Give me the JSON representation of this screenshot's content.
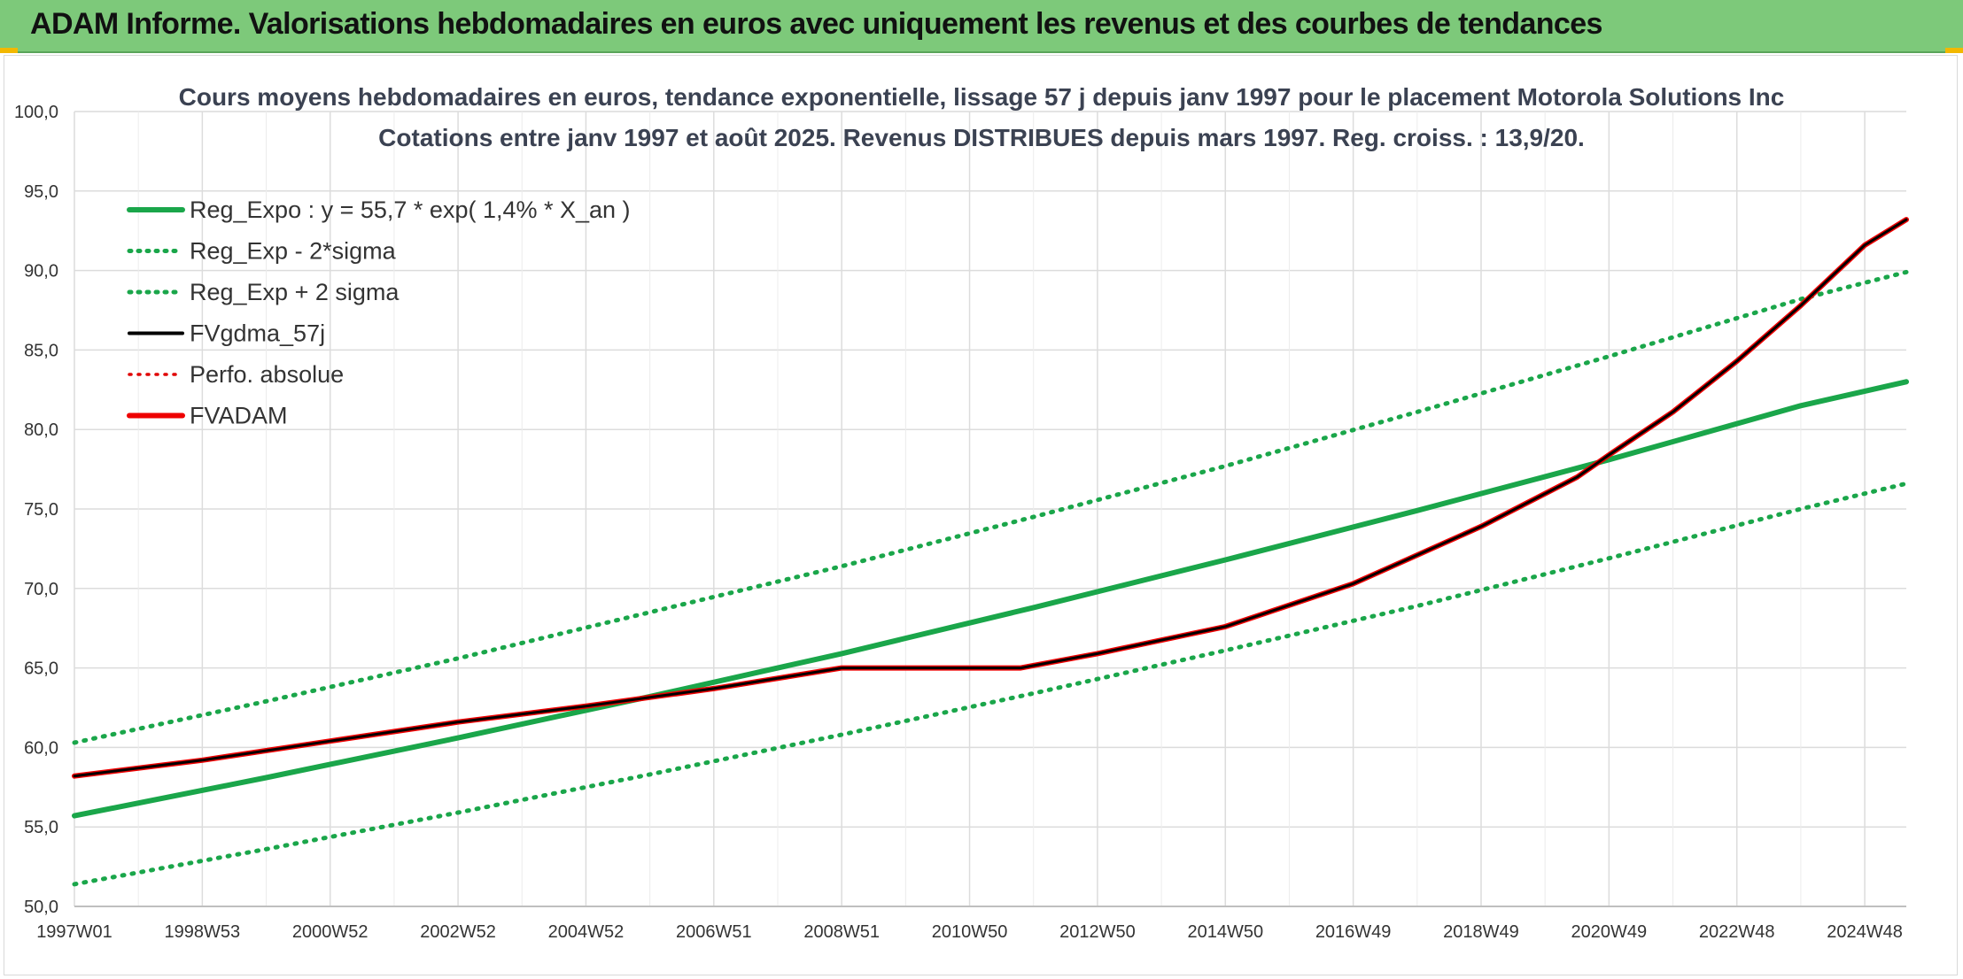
{
  "header": {
    "title": "ADAM Informe. Valorisations hebdomadaires en euros avec uniquement les revenus et des courbes de tendances"
  },
  "chart_data": {
    "type": "line",
    "title": "Cours moyens hebdomadaires en euros, tendance exponentielle, lissage 57 j depuis janv 1997 pour le placement Motorola Solutions Inc",
    "subtitle": "Cotations entre janv 1997 et août 2025. Revenus DISTRIBUES depuis mars 1997. Reg. croiss. : 13,9/20.",
    "xlabel": "",
    "ylabel": "",
    "ylim": [
      50,
      100
    ],
    "yticks": [
      "100,0",
      "95,0",
      "90,0",
      "85,0",
      "80,0",
      "75,0",
      "70,0",
      "65,0",
      "60,0",
      "55,0",
      "50,0"
    ],
    "xlim": [
      1997.0,
      2025.65
    ],
    "xticks": [
      {
        "label": "1997W01",
        "x": 1997.0
      },
      {
        "label": "1998W53",
        "x": 1999.0
      },
      {
        "label": "2000W52",
        "x": 2001.0
      },
      {
        "label": "2002W52",
        "x": 2003.0
      },
      {
        "label": "2004W52",
        "x": 2005.0
      },
      {
        "label": "2006W51",
        "x": 2007.0
      },
      {
        "label": "2008W51",
        "x": 2009.0
      },
      {
        "label": "2010W50",
        "x": 2011.0
      },
      {
        "label": "2012W50",
        "x": 2013.0
      },
      {
        "label": "2014W50",
        "x": 2015.0
      },
      {
        "label": "2016W49",
        "x": 2017.0
      },
      {
        "label": "2018W49",
        "x": 2019.0
      },
      {
        "label": "2020W49",
        "x": 2021.0
      },
      {
        "label": "2022W48",
        "x": 2023.0
      },
      {
        "label": "2024W48",
        "x": 2025.0
      }
    ],
    "grid": true,
    "legend_position": "top-left",
    "series": [
      {
        "name": "Reg_Expo : y = 55,7 * exp( 1,4% *  X_an )",
        "color": "#1aa64a",
        "style": "solid",
        "width": 6,
        "x": [
          1997,
          2000,
          2003,
          2006,
          2009,
          2012,
          2015,
          2018,
          2021,
          2024,
          2025.65
        ],
        "y": [
          55.7,
          58.1,
          60.6,
          63.2,
          65.9,
          68.8,
          71.8,
          74.9,
          78.1,
          81.5,
          83.0
        ]
      },
      {
        "name": "Reg_Exp - 2*sigma",
        "color": "#1aa64a",
        "style": "dotted",
        "width": 5,
        "x": [
          1997,
          2000,
          2003,
          2006,
          2009,
          2012,
          2015,
          2018,
          2021,
          2024,
          2025.65
        ],
        "y": [
          51.4,
          53.6,
          55.9,
          58.3,
          60.8,
          63.4,
          66.1,
          68.9,
          71.9,
          75.0,
          76.6
        ]
      },
      {
        "name": "Reg_Exp + 2 sigma",
        "color": "#1aa64a",
        "style": "dotted",
        "width": 5,
        "x": [
          1997,
          2000,
          2003,
          2006,
          2009,
          2012,
          2015,
          2018,
          2021,
          2024,
          2025.65
        ],
        "y": [
          60.3,
          62.9,
          65.6,
          68.5,
          71.4,
          74.5,
          77.7,
          81.1,
          84.6,
          88.2,
          89.9
        ]
      },
      {
        "name": "FVgdma_57j",
        "color": "#000000",
        "style": "solid",
        "width": 3,
        "x": [
          1997,
          1999,
          2001,
          2003,
          2005,
          2007,
          2009,
          2011,
          2011.8,
          2013,
          2015,
          2017,
          2019,
          2020.5,
          2021,
          2022,
          2023,
          2024,
          2025,
          2025.65
        ],
        "y": [
          58.2,
          59.2,
          60.4,
          61.6,
          62.6,
          63.7,
          65.0,
          65.0,
          65.0,
          65.9,
          67.6,
          70.3,
          73.9,
          77.0,
          78.4,
          81.1,
          84.3,
          87.8,
          91.6,
          93.2
        ]
      },
      {
        "name": "Perfo. absolue",
        "color": "#e00000",
        "style": "dotted",
        "width": 3,
        "x": [],
        "y": []
      },
      {
        "name": "FVADAM",
        "color": "#ee0000",
        "style": "solid",
        "width": 6,
        "x": [
          1997,
          1999,
          2001,
          2003,
          2005,
          2007,
          2009,
          2011,
          2011.8,
          2013,
          2015,
          2017,
          2019,
          2020.5,
          2021,
          2022,
          2023,
          2024,
          2025,
          2025.65
        ],
        "y": [
          58.2,
          59.2,
          60.4,
          61.6,
          62.6,
          63.7,
          65.0,
          65.0,
          65.0,
          65.9,
          67.6,
          70.3,
          73.9,
          77.0,
          78.4,
          81.1,
          84.3,
          87.8,
          91.6,
          93.2
        ]
      }
    ]
  }
}
